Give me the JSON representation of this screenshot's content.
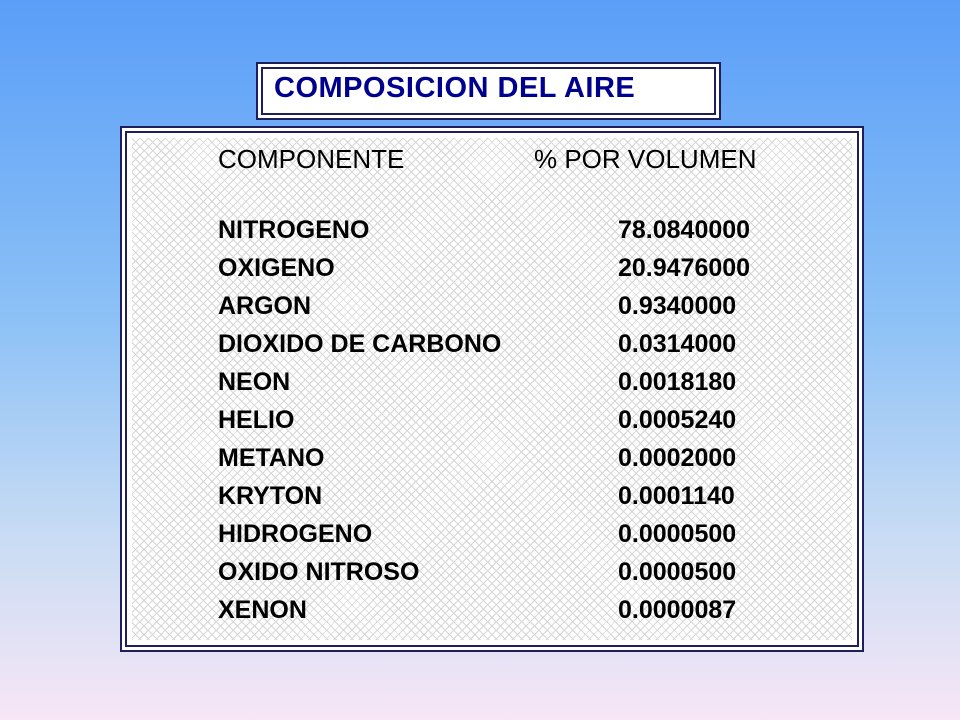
{
  "title": "COMPOSICION DEL AIRE",
  "table": {
    "header_component": "COMPONENTE",
    "header_percent": "% POR VOLUMEN",
    "rows": [
      {
        "name": "NITROGENO",
        "value": "78.0840000"
      },
      {
        "name": "OXIGENO",
        "value": "20.9476000"
      },
      {
        "name": "ARGON",
        "value": "0.9340000"
      },
      {
        "name": "DIOXIDO DE CARBONO",
        "value": "0.0314000"
      },
      {
        "name": "NEON",
        "value": "0.0018180"
      },
      {
        "name": "HELIO",
        "value": "0.0005240"
      },
      {
        "name": "METANO",
        "value": "0.0002000"
      },
      {
        "name": "KRYTON",
        "value": "0.0001140"
      },
      {
        "name": "HIDROGENO",
        "value": "0.0000500"
      },
      {
        "name": "OXIDO NITROSO",
        "value": "0.0000500"
      },
      {
        "name": "XENON",
        "value": "0.0000087"
      }
    ]
  },
  "colors": {
    "title_text": "#00008e",
    "border": "#1e1e5a",
    "background_top": "#5a9ef8",
    "background_bottom": "#f7e6f6"
  }
}
